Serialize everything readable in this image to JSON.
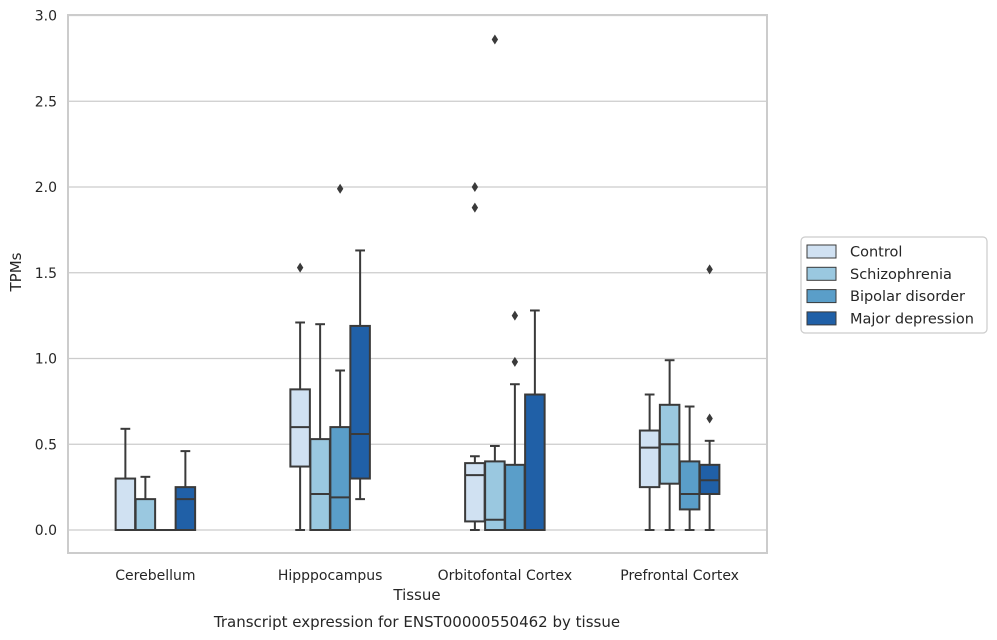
{
  "chart_data": {
    "type": "boxplot",
    "xlabel": "Tissue",
    "ylabel": "TPMs",
    "caption": "Transcript expression for ENST00000550462 by tissue",
    "ylim": [
      -0.14,
      3.0
    ],
    "yticks": [
      "0.0",
      "0.5",
      "1.0",
      "1.5",
      "2.0",
      "2.5",
      "3.0"
    ],
    "grid": "horizontal",
    "legend_position": "right",
    "categories": [
      "Cerebellum",
      "Hipppocampus",
      "Orbitofontal Cortex",
      "Prefrontal Cortex"
    ],
    "series": [
      {
        "name": "Control",
        "color": "#d0e1f2",
        "boxes": [
          {
            "whislo": 0.0,
            "q1": 0.0,
            "med": 0.0,
            "q3": 0.3,
            "whishi": 0.59,
            "fliers": []
          },
          {
            "whislo": 0.0,
            "q1": 0.37,
            "med": 0.6,
            "q3": 0.82,
            "whishi": 1.21,
            "fliers": [
              1.53
            ]
          },
          {
            "whislo": 0.0,
            "q1": 0.05,
            "med": 0.32,
            "q3": 0.39,
            "whishi": 0.43,
            "fliers": [
              2.0,
              1.88
            ]
          },
          {
            "whislo": 0.0,
            "q1": 0.25,
            "med": 0.48,
            "q3": 0.58,
            "whishi": 0.79,
            "fliers": []
          }
        ]
      },
      {
        "name": "Schizophrenia",
        "color": "#9ac8e0",
        "boxes": [
          {
            "whislo": 0.0,
            "q1": 0.0,
            "med": 0.0,
            "q3": 0.18,
            "whishi": 0.31,
            "fliers": []
          },
          {
            "whislo": 0.0,
            "q1": 0.0,
            "med": 0.21,
            "q3": 0.53,
            "whishi": 1.2,
            "fliers": []
          },
          {
            "whislo": 0.0,
            "q1": 0.0,
            "med": 0.06,
            "q3": 0.4,
            "whishi": 0.49,
            "fliers": [
              2.86
            ]
          },
          {
            "whislo": 0.0,
            "q1": 0.27,
            "med": 0.5,
            "q3": 0.73,
            "whishi": 0.99,
            "fliers": []
          }
        ]
      },
      {
        "name": "Bipolar disorder",
        "color": "#5a9ec9",
        "boxes": [
          {
            "whislo": 0.0,
            "q1": 0.0,
            "med": 0.0,
            "q3": 0.0,
            "whishi": 0.0,
            "fliers": []
          },
          {
            "whislo": 0.0,
            "q1": 0.0,
            "med": 0.19,
            "q3": 0.6,
            "whishi": 0.93,
            "fliers": [
              1.99
            ]
          },
          {
            "whislo": 0.0,
            "q1": 0.0,
            "med": 0.0,
            "q3": 0.38,
            "whishi": 0.85,
            "fliers": [
              1.25,
              0.98
            ]
          },
          {
            "whislo": 0.0,
            "q1": 0.12,
            "med": 0.21,
            "q3": 0.4,
            "whishi": 0.72,
            "fliers": []
          }
        ]
      },
      {
        "name": "Major depression",
        "color": "#2060a7",
        "boxes": [
          {
            "whislo": 0.0,
            "q1": 0.0,
            "med": 0.18,
            "q3": 0.25,
            "whishi": 0.46,
            "fliers": []
          },
          {
            "whislo": 0.18,
            "q1": 0.3,
            "med": 0.56,
            "q3": 1.19,
            "whishi": 1.63,
            "fliers": []
          },
          {
            "whislo": 0.0,
            "q1": 0.0,
            "med": 0.0,
            "q3": 0.79,
            "whishi": 1.28,
            "fliers": []
          },
          {
            "whislo": 0.0,
            "q1": 0.21,
            "med": 0.29,
            "q3": 0.38,
            "whishi": 0.52,
            "fliers": [
              1.52,
              0.65
            ]
          }
        ]
      }
    ]
  }
}
